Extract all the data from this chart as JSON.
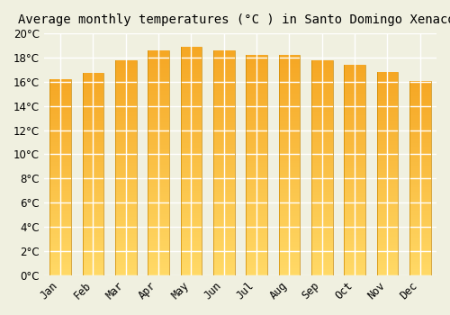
{
  "title": "Average monthly temperatures (°C ) in Santo Domingo Xenacoj",
  "months": [
    "Jan",
    "Feb",
    "Mar",
    "Apr",
    "May",
    "Jun",
    "Jul",
    "Aug",
    "Sep",
    "Oct",
    "Nov",
    "Dec"
  ],
  "temperatures": [
    16.2,
    16.7,
    17.8,
    18.6,
    18.9,
    18.6,
    18.2,
    18.2,
    17.8,
    17.4,
    16.8,
    16.1
  ],
  "bar_color_top": "#F5A623",
  "bar_color_bottom": "#FFD966",
  "bar_edge_color": "#CC8800",
  "ylim": [
    0,
    20
  ],
  "ytick_step": 2,
  "background_color": "#F0F0E0",
  "grid_color": "#FFFFFF",
  "title_fontsize": 10,
  "tick_fontsize": 8.5,
  "figsize": [
    5.0,
    3.5
  ],
  "dpi": 100
}
